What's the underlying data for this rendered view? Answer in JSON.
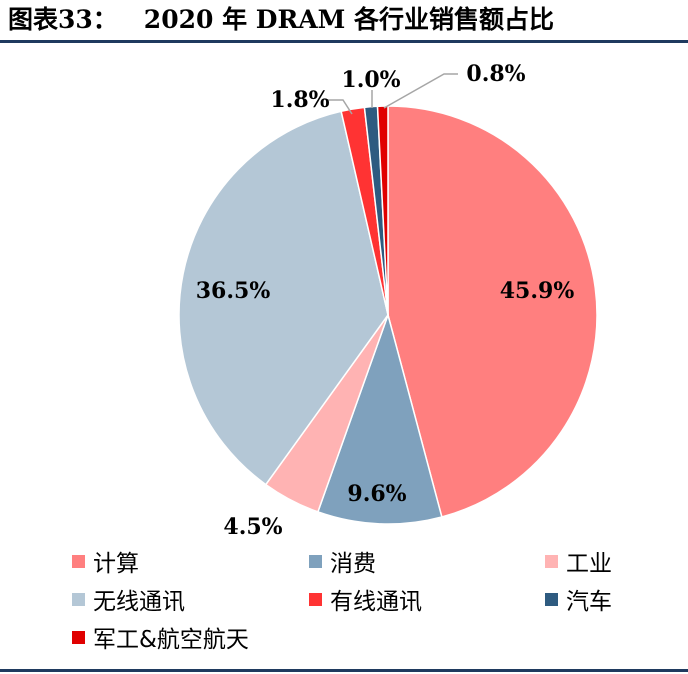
{
  "figure": {
    "label": "图表33：",
    "title": "2020 年 DRAM 各行业销售额占比"
  },
  "chart_data": {
    "type": "pie",
    "title": "2020 年 DRAM 各行业销售额占比",
    "start_angle_deg": 0,
    "direction": "clockwise",
    "legend_position": "bottom",
    "slices": [
      {
        "name": "计算",
        "value": 45.9,
        "label": "45.9%",
        "color": "#ff7f7f"
      },
      {
        "name": "消费",
        "value": 9.6,
        "label": "9.6%",
        "color": "#7fa1bd"
      },
      {
        "name": "工业",
        "value": 4.5,
        "label": "4.5%",
        "color": "#ffb3b3"
      },
      {
        "name": "无线通讯",
        "value": 36.5,
        "label": "36.5%",
        "color": "#b4c7d6"
      },
      {
        "name": "有线通讯",
        "value": 1.8,
        "label": "1.8%",
        "color": "#ff3333"
      },
      {
        "name": "汽车",
        "value": 1.0,
        "label": "1.0%",
        "color": "#2e5b80"
      },
      {
        "name": "军工&航空航天",
        "value": 0.8,
        "label": "0.8%",
        "color": "#e00000"
      }
    ]
  }
}
